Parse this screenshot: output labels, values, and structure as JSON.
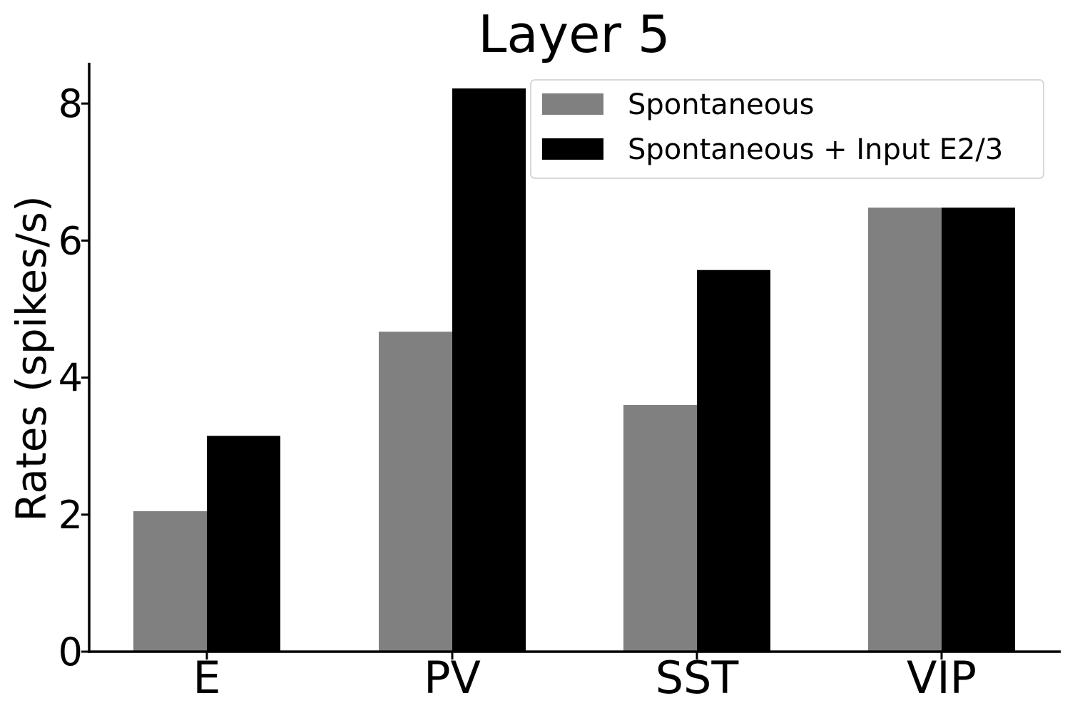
{
  "chart_data": {
    "type": "bar",
    "title": "Layer 5",
    "xlabel": "",
    "ylabel": "Rates (spikes/s)",
    "categories": [
      "E",
      "PV",
      "SST",
      "VIP"
    ],
    "series": [
      {
        "name": "Spontaneous",
        "color": "#808080",
        "values": [
          2.05,
          4.67,
          3.6,
          6.48
        ]
      },
      {
        "name": "Spontaneous + Input E2/3",
        "color": "#000000",
        "values": [
          3.15,
          8.22,
          5.57,
          6.48
        ]
      }
    ],
    "ylim": [
      0,
      8.65
    ],
    "yticks": [
      0,
      2,
      4,
      6,
      8
    ],
    "grid": false,
    "legend_position": "top-right"
  }
}
